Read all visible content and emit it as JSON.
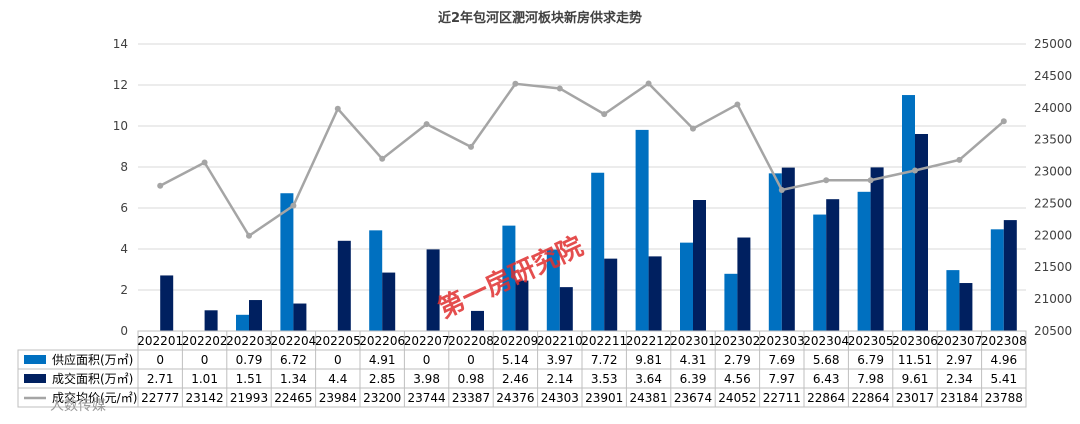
{
  "chart_data": {
    "type": "bar+line",
    "title": "近2年包河区淝河板块新房供求走势",
    "categories": [
      "202201",
      "202202",
      "202203",
      "202204",
      "202205",
      "202206",
      "202207",
      "202208",
      "202209",
      "202210",
      "202211",
      "202212",
      "202301",
      "202302",
      "202303",
      "202304",
      "202305",
      "202306",
      "202307",
      "202308"
    ],
    "series": [
      {
        "name": "供应面积(万㎡)",
        "type": "bar",
        "axis": "left",
        "color": "#0070c0",
        "values": [
          0,
          0,
          0.79,
          6.72,
          0,
          4.91,
          0,
          0,
          5.14,
          3.97,
          7.72,
          9.81,
          4.31,
          2.79,
          7.69,
          5.68,
          6.79,
          11.51,
          2.97,
          4.96
        ]
      },
      {
        "name": "成交面积(万㎡)",
        "type": "bar",
        "axis": "left",
        "color": "#002060",
        "values": [
          2.71,
          1.01,
          1.51,
          1.34,
          4.4,
          2.85,
          3.98,
          0.98,
          2.46,
          2.14,
          3.53,
          3.64,
          6.39,
          4.56,
          7.97,
          6.43,
          7.98,
          9.61,
          2.34,
          5.41
        ]
      },
      {
        "name": "成交均价(元/㎡)",
        "type": "line",
        "axis": "right",
        "color": "#a5a5a5",
        "values": [
          22777,
          23142,
          21993,
          22465,
          23984,
          23200,
          23744,
          23387,
          24376,
          24303,
          23901,
          24381,
          23674,
          24052,
          22711,
          22864,
          22864,
          23017,
          23184,
          23788
        ]
      }
    ],
    "y_left": {
      "min": 0,
      "max": 14,
      "step": 2
    },
    "y_right": {
      "min": 20500,
      "max": 25000,
      "step": 500
    },
    "grid": true,
    "legend": "data-table"
  },
  "watermark": "第一房研究院",
  "corner_text": "人数传媒"
}
